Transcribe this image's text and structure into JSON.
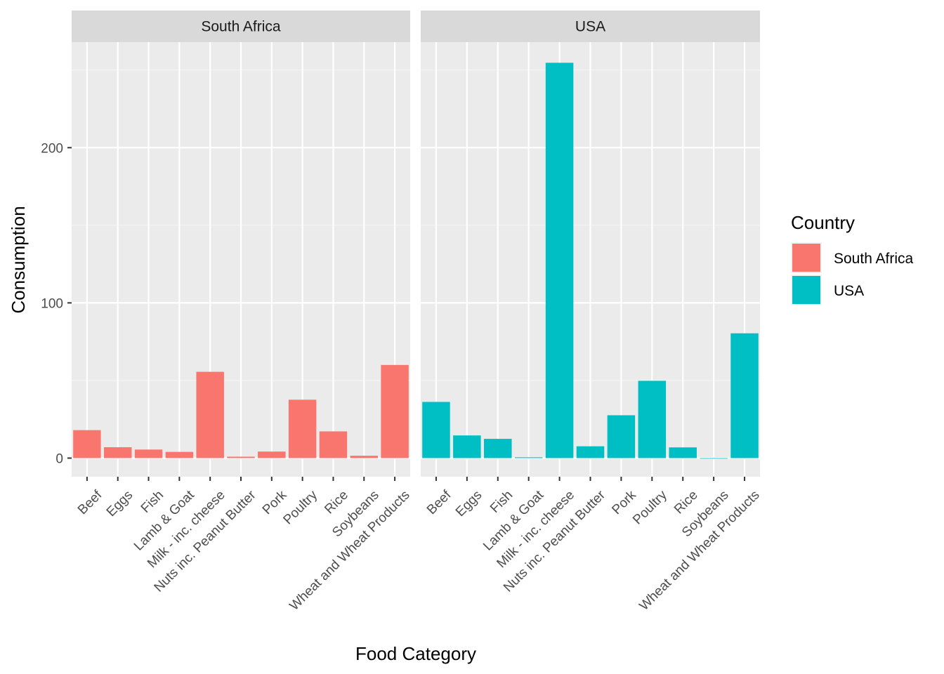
{
  "chart_data": {
    "type": "bar",
    "facet_by": "Country",
    "categories": [
      "Beef",
      "Eggs",
      "Fish",
      "Lamb & Goat",
      "Milk - inc. cheese",
      "Nuts inc. Peanut Butter",
      "Pork",
      "Poultry",
      "Rice",
      "Soybeans",
      "Wheat and Wheat Products"
    ],
    "series": [
      {
        "name": "South Africa",
        "color": "#F8766D",
        "values": [
          18,
          7,
          5.5,
          4,
          55.6,
          0.9,
          4.2,
          37.6,
          17.2,
          1.5,
          60
        ]
      },
      {
        "name": "USA",
        "color": "#00BFC4",
        "values": [
          36.2,
          14.6,
          12.4,
          0.5,
          254.7,
          7.6,
          27.6,
          49.8,
          6.9,
          0,
          80.4
        ]
      }
    ],
    "facets": [
      "South Africa",
      "USA"
    ],
    "xlabel": "Food Category",
    "ylabel": "Consumption",
    "ylim": [
      -12,
      268
    ],
    "yticks": [
      0,
      100,
      200
    ],
    "grid": true,
    "legend": {
      "title": "Country",
      "position": "right"
    }
  }
}
